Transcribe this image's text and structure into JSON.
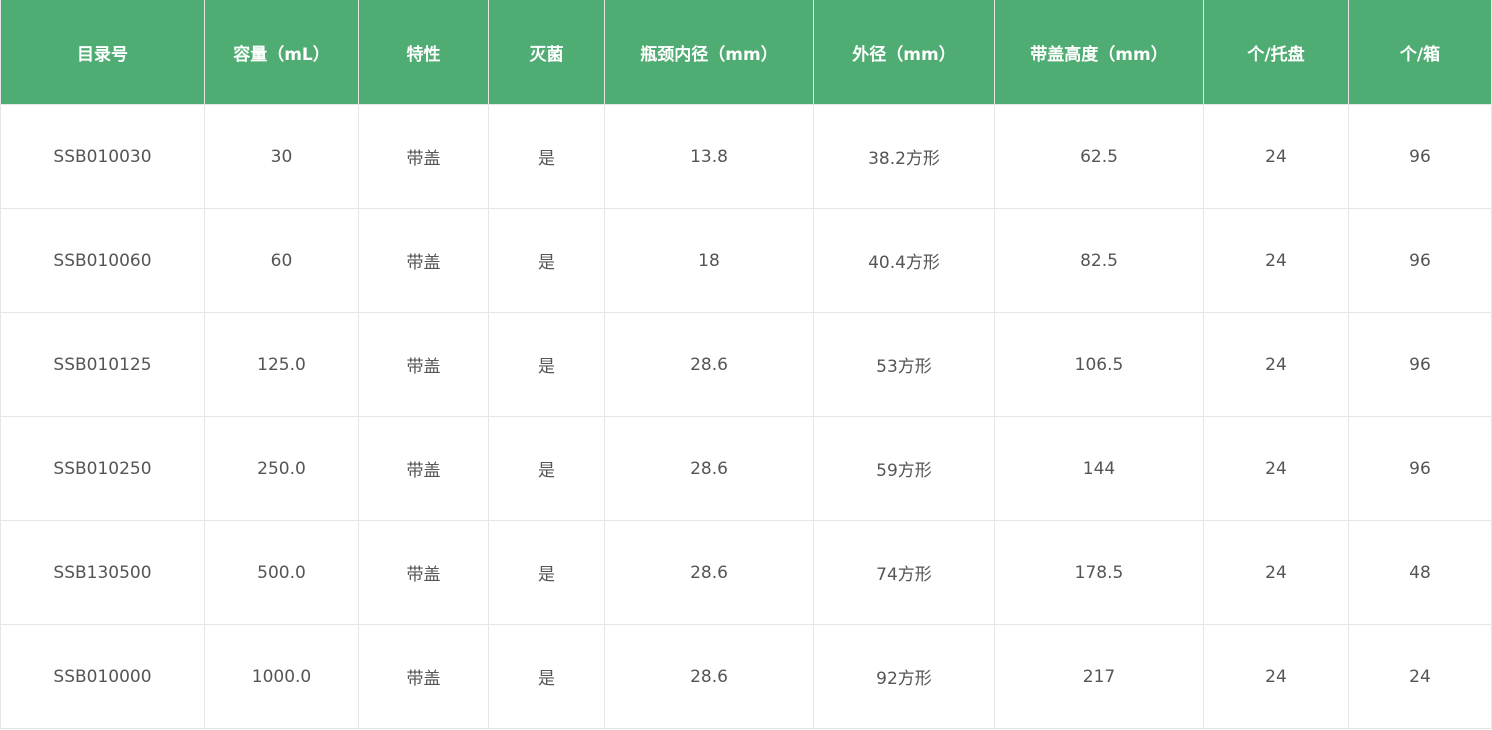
{
  "table": {
    "headers": [
      "目录号",
      "容量（mL）",
      "特性",
      "灭菌",
      "瓶颈内径（mm）",
      "外径（mm）",
      "带盖高度（mm）",
      "个/托盘",
      "个/箱"
    ],
    "rows": [
      [
        "SSB010030",
        "30",
        "带盖",
        "是",
        "13.8",
        "38.2方形",
        "62.5",
        "24",
        "96"
      ],
      [
        "SSB010060",
        "60",
        "带盖",
        "是",
        "18",
        "40.4方形",
        "82.5",
        "24",
        "96"
      ],
      [
        "SSB010125",
        "125.0",
        "带盖",
        "是",
        "28.6",
        "53方形",
        "106.5",
        "24",
        "96"
      ],
      [
        "SSB010250",
        "250.0",
        "带盖",
        "是",
        "28.6",
        "59方形",
        "144",
        "24",
        "96"
      ],
      [
        "SSB130500",
        "500.0",
        "带盖",
        "是",
        "28.6",
        "74方形",
        "178.5",
        "24",
        "48"
      ],
      [
        "SSB010000",
        "1000.0",
        "带盖",
        "是",
        "28.6",
        "92方形",
        "217",
        "24",
        "24"
      ]
    ]
  },
  "colors": {
    "header_bg": "#4fac72",
    "header_text": "#ffffff",
    "cell_text": "#555555",
    "border": "#e6e6e6"
  }
}
